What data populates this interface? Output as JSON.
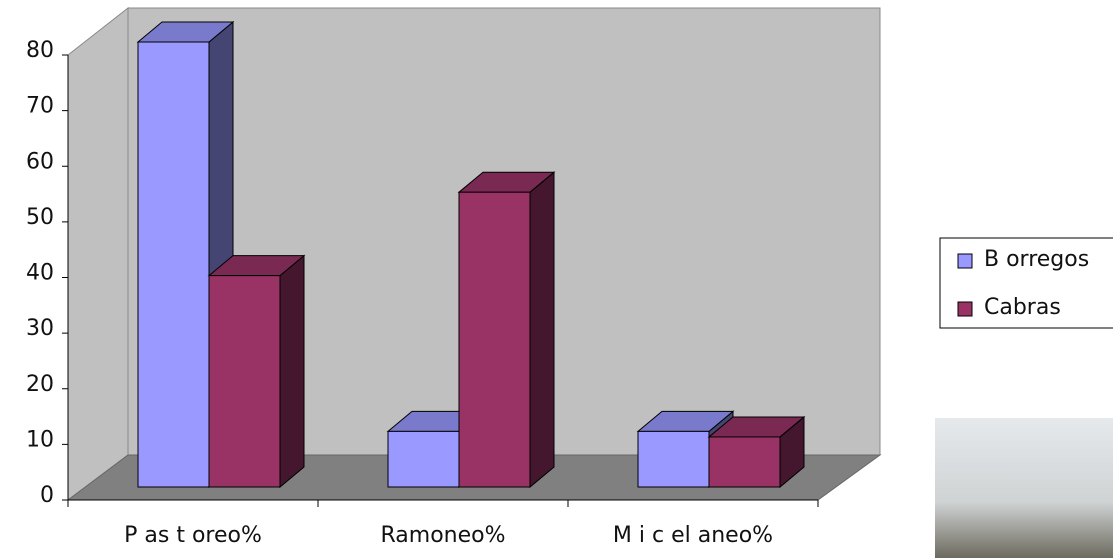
{
  "chart_data": {
    "type": "bar3d",
    "categories": [
      "P as t oreo%",
      "Ramoneo%",
      "M i c el aneo%"
    ],
    "series": [
      {
        "name": "B orregos",
        "color": "#9999ff",
        "values": [
          80,
          10,
          10
        ]
      },
      {
        "name": "Cabras",
        "color": "#993366",
        "values": [
          38,
          53,
          9
        ]
      }
    ],
    "ylim": [
      0,
      80
    ],
    "yticks": [
      0,
      10,
      20,
      30,
      40,
      50,
      60,
      70,
      80
    ]
  }
}
